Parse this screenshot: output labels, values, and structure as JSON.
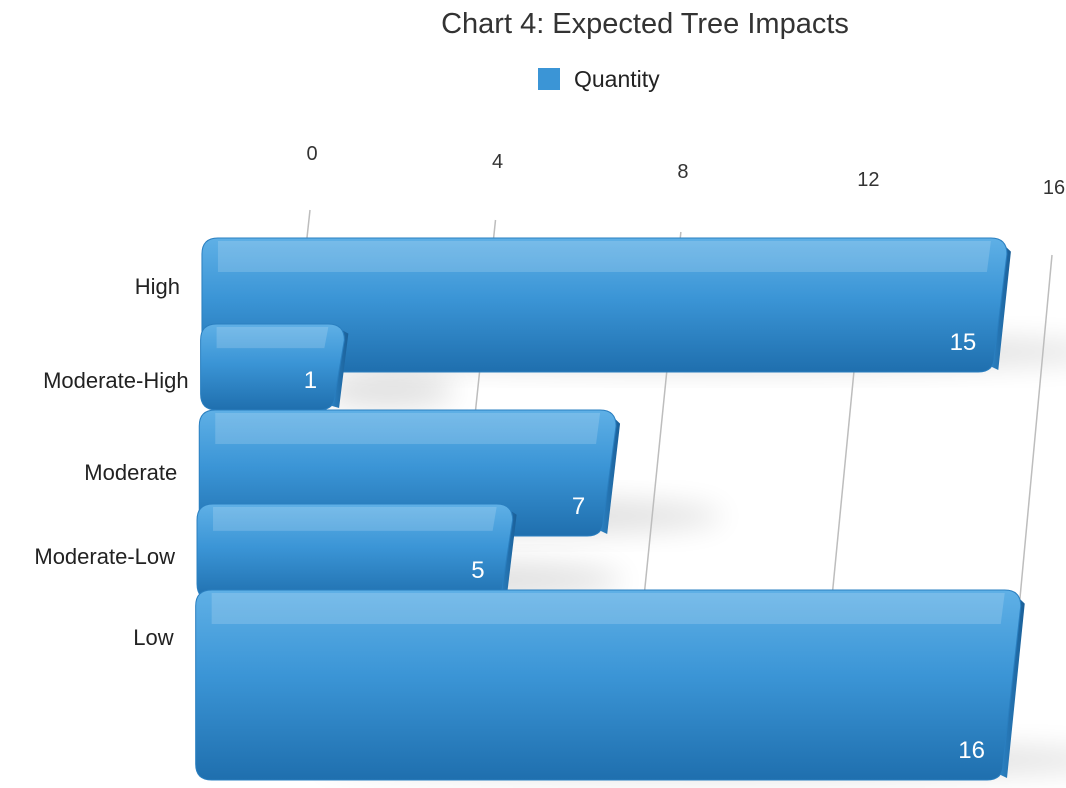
{
  "chart_data": {
    "type": "bar",
    "orientation": "horizontal",
    "title": "Chart 4: Expected Tree Impacts",
    "categories": [
      "High",
      "Moderate-High",
      "Moderate",
      "Moderate-Low",
      "Low"
    ],
    "series": [
      {
        "name": "Quantity",
        "values": [
          15,
          1,
          7,
          5,
          16
        ],
        "color": "#3b95d6"
      }
    ],
    "xticks": [
      0,
      4,
      8,
      12,
      16
    ],
    "xlim": [
      0,
      16
    ],
    "legend": "top",
    "grid": true,
    "data_labels": true
  }
}
